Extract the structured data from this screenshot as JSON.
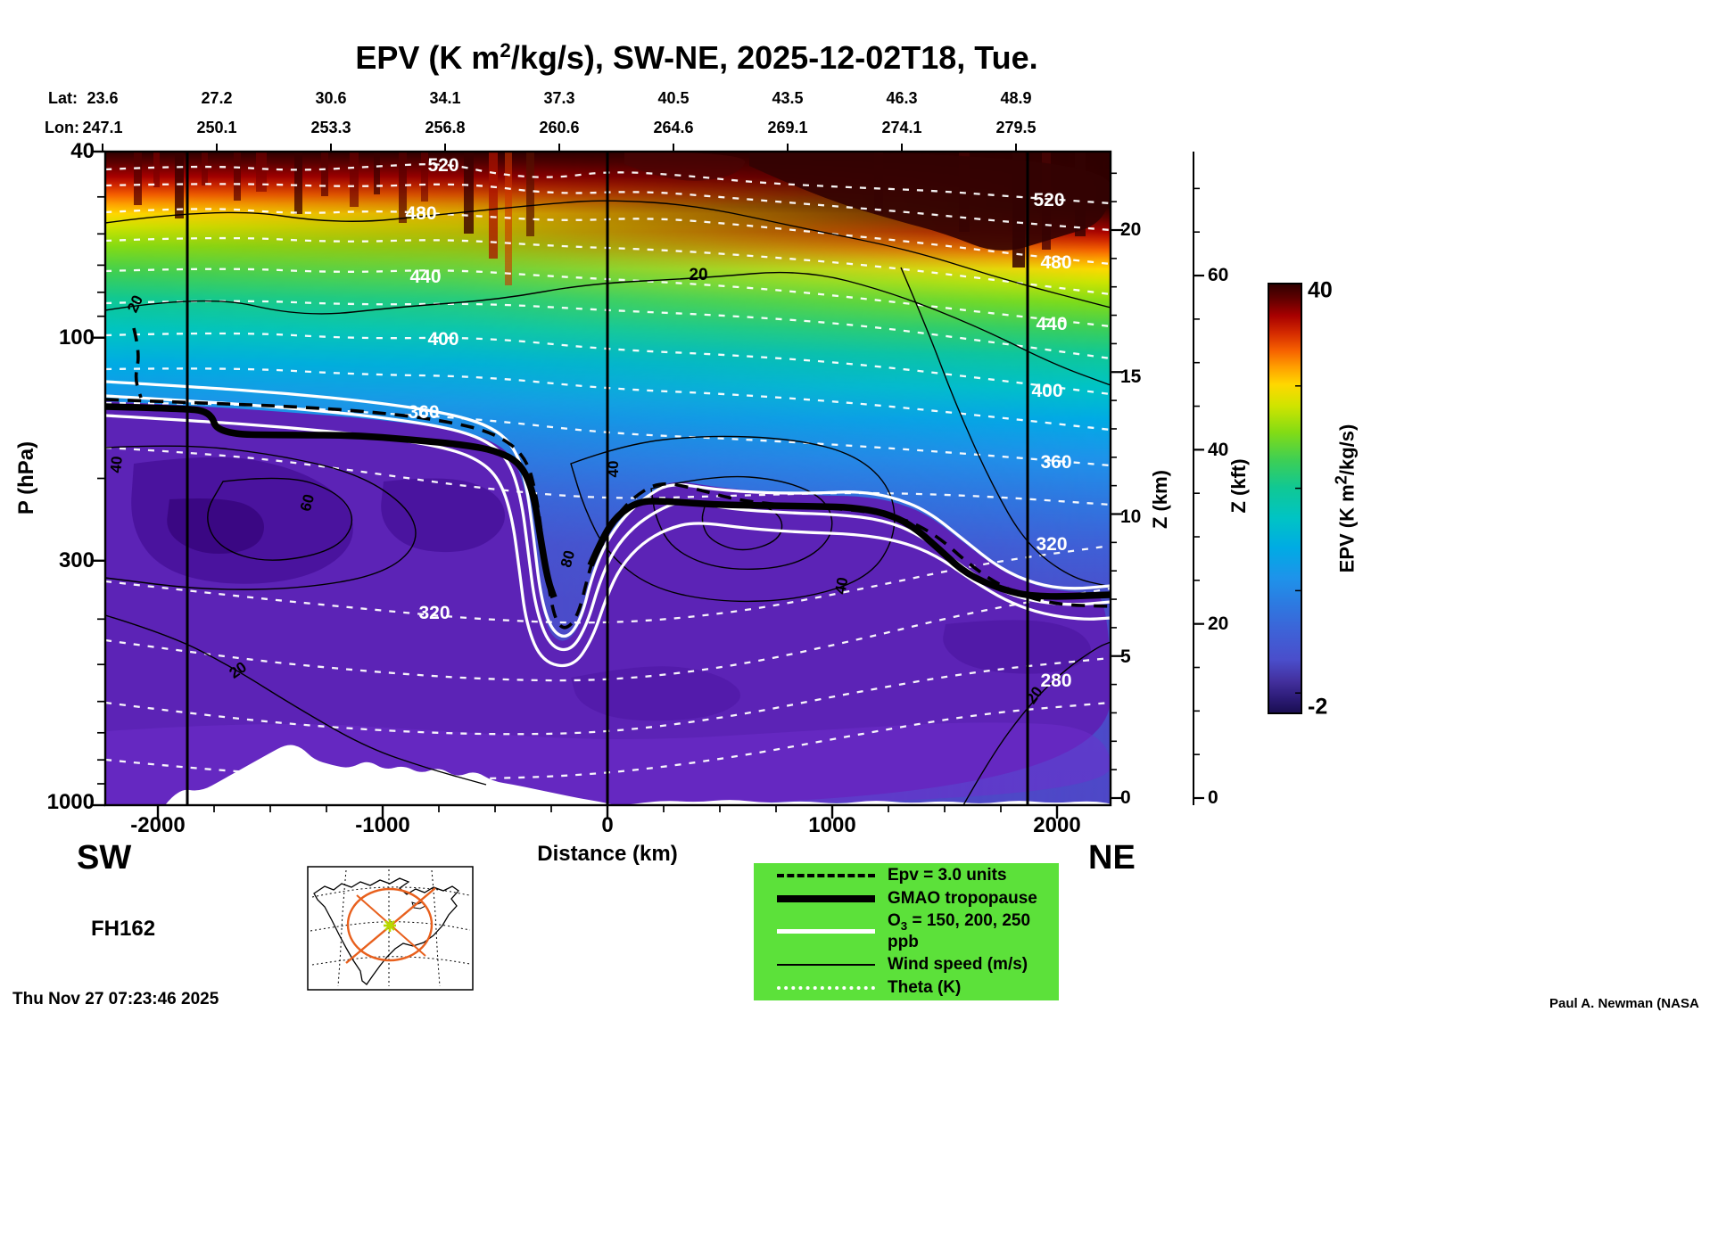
{
  "title": {
    "pre": "EPV (K m",
    "sup": "2",
    "post": "/kg/s), SW-NE, 2025-12-02T18, Tue."
  },
  "top_axis": {
    "lat_label": "Lat:",
    "lon_label": "Lon:",
    "lat_values": [
      "23.6",
      "27.2",
      "30.6",
      "34.1",
      "37.3",
      "40.5",
      "43.5",
      "46.3",
      "48.9"
    ],
    "lon_values": [
      "247.1",
      "250.1",
      "253.3",
      "256.8",
      "260.6",
      "264.6",
      "269.1",
      "274.1",
      "279.5"
    ]
  },
  "pressure_axis": {
    "label": "P (hPa)",
    "ticks": [
      "40",
      "100",
      "300",
      "1000"
    ]
  },
  "distance_axis": {
    "label": "Distance (km)",
    "ticks": [
      "-2000",
      "-1000",
      "0",
      "1000",
      "2000"
    ]
  },
  "z_km_axis": {
    "label": "Z (km)",
    "ticks": [
      "20",
      "15",
      "10",
      "5",
      "0"
    ]
  },
  "z_kft_axis": {
    "label": "Z (kft)",
    "ticks": [
      "60",
      "40",
      "20",
      "0"
    ]
  },
  "colorbar": {
    "label_pre": "EPV (K m",
    "label_sup": "2",
    "label_post": "/kg/s)",
    "max": "40",
    "min": "-2"
  },
  "corners": {
    "sw": "SW",
    "ne": "NE"
  },
  "legend": {
    "epv": "Epv = 3.0 units",
    "tropopause": "GMAO tropopause",
    "ozone_pre": "O",
    "ozone_sub": "3",
    "ozone_post": " = 150, 200, 250 ppb",
    "wind": "Wind speed (m/s)",
    "theta": "Theta (K)"
  },
  "annotations": {
    "forecast_hour": "FH162",
    "timestamp": "Thu Nov 27 07:23:46 2025",
    "credit": "Paul A. Newman (NASA"
  },
  "contour_labels": {
    "theta_left": [
      "520",
      "480",
      "440",
      "400",
      "360",
      "320"
    ],
    "theta_right": [
      "520",
      "480",
      "440",
      "400",
      "360",
      "320",
      "280"
    ],
    "wind": [
      "20",
      "40",
      "60",
      "20",
      "40",
      "40",
      "20",
      "20",
      "80"
    ]
  },
  "chart_data": {
    "type": "heatmap",
    "field": "Ertel potential vorticity (EPV) vertical cross-section, filled contours",
    "title": "EPV (K m^2/kg/s), SW-NE, 2025-12-02T18, Tue.",
    "orientation": "SW-NE",
    "valid_time": "2025-12-02T18",
    "forecast_hour": "FH162",
    "generated": "Thu Nov 27 07:23:46 2025",
    "x_axis": {
      "label": "Distance (km)",
      "range_km": [
        -2238,
        2238
      ],
      "ticks": [
        -2000,
        -1000,
        0,
        1000,
        2000
      ]
    },
    "y_axis": {
      "label": "P (hPa)",
      "scale": "log",
      "range_hPa": [
        40,
        1000
      ],
      "ticks": [
        40,
        100,
        300,
        1000
      ]
    },
    "right_axis_km": {
      "label": "Z (km)",
      "ticks": [
        20,
        15,
        10,
        5,
        0
      ]
    },
    "right_axis_kft": {
      "label": "Z (kft)",
      "ticks": [
        60,
        40,
        20,
        0
      ]
    },
    "colorbar": {
      "label": "EPV (K m^2/kg/s)",
      "min": -2,
      "max": 40
    },
    "section_points": [
      {
        "lat": 23.6,
        "lon": 247.1
      },
      {
        "lat": 27.2,
        "lon": 250.1
      },
      {
        "lat": 30.6,
        "lon": 253.3
      },
      {
        "lat": 34.1,
        "lon": 256.8
      },
      {
        "lat": 37.3,
        "lon": 260.6
      },
      {
        "lat": 40.5,
        "lon": 264.6
      },
      {
        "lat": 43.5,
        "lon": 269.1
      },
      {
        "lat": 46.3,
        "lon": 274.1
      },
      {
        "lat": 48.9,
        "lon": 279.5
      }
    ],
    "overlays": {
      "theta_K_labeled_contours": [
        280,
        320,
        360,
        400,
        440,
        480,
        520
      ],
      "wind_ms_labeled_contours": [
        20,
        40,
        60,
        80
      ],
      "epv_dashed_contour_units": 3.0,
      "ozone_ppb_contours": [
        150,
        200,
        250
      ],
      "tropopause_line": "GMAO tropopause"
    }
  }
}
